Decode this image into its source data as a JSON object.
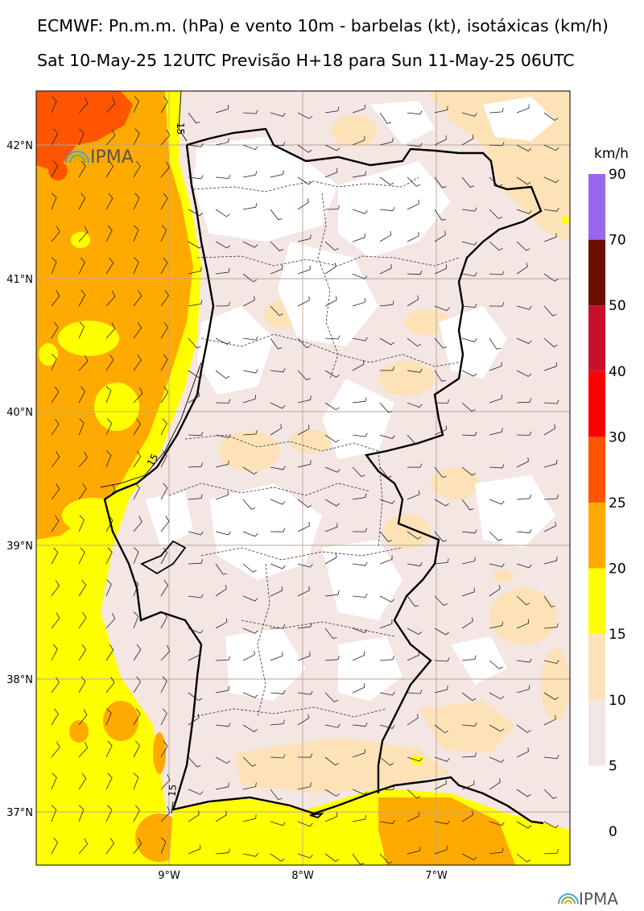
{
  "header": {
    "title_line1": "ECMWF: Pn.m.m. (hPa) e vento 10m - barbelas (kt), isotáxicas (km/h)",
    "title_line2": "Sat 10-May-25 12UTC Previsão H+18 para Sun 11-May-25 06UTC"
  },
  "axes": {
    "lat_labels": [
      "42°N",
      "41°N",
      "40°N",
      "39°N",
      "38°N",
      "37°N"
    ],
    "lon_labels": [
      "9°W",
      "8°W",
      "7°W"
    ]
  },
  "colorbar": {
    "unit": "km/h",
    "levels": [
      "0",
      "5",
      "10",
      "15",
      "20",
      "25",
      "30",
      "40",
      "50",
      "70",
      "90"
    ],
    "colors": [
      "#ffffff",
      "#f3e6e3",
      "#fde2b8",
      "#ffff00",
      "#ffaa00",
      "#ff5500",
      "#ff0000",
      "#c8102e",
      "#6b1000",
      "#9966ee"
    ]
  },
  "contour_labels": [
    "15",
    "15",
    "15"
  ],
  "logo": {
    "text": "IPMA"
  },
  "footer_logo": {
    "text": "IPMA"
  }
}
